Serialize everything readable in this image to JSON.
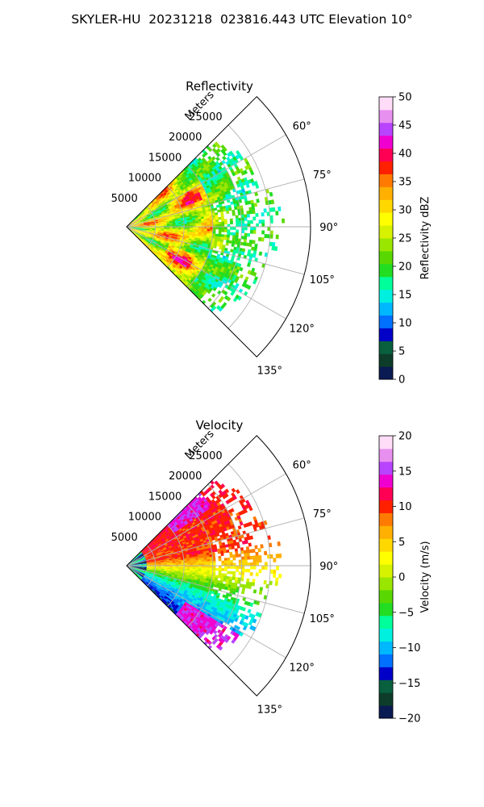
{
  "figure": {
    "title": "SKYLER-HU  20231218  023816.443 UTC Elevation 10°"
  },
  "chart_data": [
    {
      "type": "heatmap",
      "subtype": "polar-sector-radar-ppi",
      "title": "Reflectivity",
      "radial_axis_label": "Meters",
      "radial_ticks": [
        5000,
        10000,
        15000,
        20000,
        25000
      ],
      "radial_tick_labels": [
        "5000",
        "10000",
        "15000",
        "20000",
        "25000"
      ],
      "azimuth_ticks": [
        60,
        75,
        90,
        105,
        120,
        135
      ],
      "azimuth_tick_labels": [
        "60°",
        "75°",
        "90°",
        "105°",
        "120°",
        "135°"
      ],
      "azimuth_range": [
        45,
        135
      ],
      "radial_range": [
        0,
        32000
      ],
      "grid": true,
      "colorbar": {
        "label": "Reflectivity dBZ",
        "range": [
          0,
          50
        ],
        "ticks": [
          0,
          5,
          10,
          15,
          20,
          25,
          30,
          35,
          40,
          45,
          50
        ],
        "tick_labels": [
          "0",
          "5",
          "10",
          "15",
          "20",
          "25",
          "30",
          "35",
          "40",
          "45",
          "50"
        ],
        "palette": [
          "#0a1a52",
          "#0d3d2a",
          "#08603e",
          "#0000c8",
          "#0070ff",
          "#00b8ff",
          "#00f0e0",
          "#00ff9a",
          "#22dd22",
          "#58d800",
          "#9ae600",
          "#d6f200",
          "#ffff00",
          "#ffd800",
          "#ffb000",
          "#ff7a00",
          "#ff2000",
          "#ff0055",
          "#f000d0",
          "#b844ff",
          "#e890f0",
          "#ffdcf8"
        ]
      },
      "field_description": [
        {
          "region": "near range 0-15000 m, azimuth 60-125",
          "value_range": [
            22,
            36
          ]
        },
        {
          "region": "far range 15000-27000 m, azimuth 70-110",
          "value_range": [
            15,
            22
          ]
        },
        {
          "region": "far range 15000-24000 m, azimuth 110-135",
          "value_range": [
            15,
            24
          ]
        }
      ]
    },
    {
      "type": "heatmap",
      "subtype": "polar-sector-radar-ppi",
      "title": "Velocity",
      "radial_axis_label": "Meters",
      "radial_ticks": [
        5000,
        10000,
        15000,
        20000,
        25000
      ],
      "radial_tick_labels": [
        "5000",
        "10000",
        "15000",
        "20000",
        "25000"
      ],
      "azimuth_ticks": [
        60,
        75,
        90,
        105,
        120,
        135
      ],
      "azimuth_tick_labels": [
        "60°",
        "75°",
        "90°",
        "105°",
        "120°",
        "135°"
      ],
      "azimuth_range": [
        45,
        135
      ],
      "radial_range": [
        0,
        32000
      ],
      "grid": true,
      "colorbar": {
        "label": "Velocity (m/s)",
        "range": [
          -20,
          20
        ],
        "ticks": [
          -20,
          -15,
          -10,
          -5,
          0,
          5,
          10,
          15,
          20
        ],
        "tick_labels": [
          "−20",
          "−15",
          "−10",
          "−5",
          "0",
          "5",
          "10",
          "15",
          "20"
        ],
        "palette": [
          "#0a1a52",
          "#0d3d2a",
          "#08603e",
          "#0000c8",
          "#0070ff",
          "#00b8ff",
          "#00f0e0",
          "#00ff9a",
          "#22dd22",
          "#58d800",
          "#9ae600",
          "#d6f200",
          "#ffff00",
          "#ffd800",
          "#ffb000",
          "#ff7a00",
          "#ff2000",
          "#ff0055",
          "#f000d0",
          "#b844ff",
          "#e890f0",
          "#ffdcf8"
        ]
      },
      "field_description": [
        {
          "region": "azimuth 45-80",
          "value_range": [
            8,
            14
          ]
        },
        {
          "region": "azimuth 80-95",
          "value_range": [
            0,
            6
          ]
        },
        {
          "region": "azimuth 95-110",
          "value_range": [
            -6,
            -2
          ]
        },
        {
          "region": "azimuth 110-128",
          "value_range": [
            -12,
            -8
          ]
        },
        {
          "region": "azimuth 125-135 far range",
          "value_range": [
            12,
            16
          ]
        }
      ]
    }
  ]
}
